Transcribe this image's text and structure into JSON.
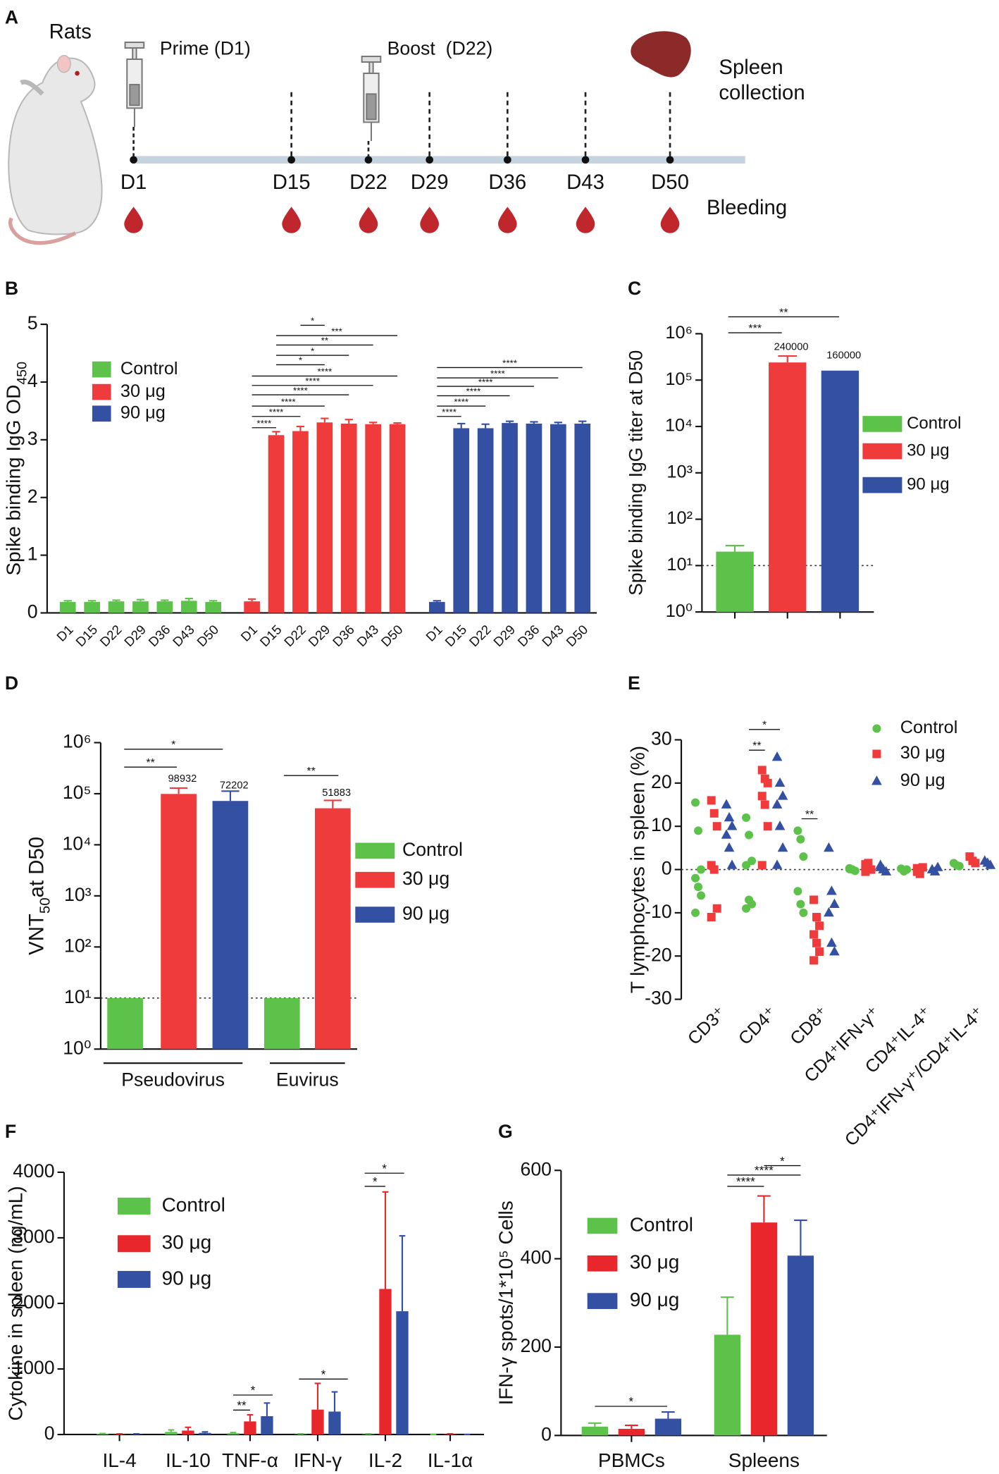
{
  "timeline": {
    "label": "A",
    "subject": "Rats",
    "prime": "Prime (D1)",
    "boost": "Boost  (D22)",
    "spleen": [
      "Spleen",
      "collection"
    ],
    "days": [
      "D1",
      "D15",
      "D22",
      "D29",
      "D36",
      "D43",
      "D50"
    ],
    "bleeding": "Bleeding"
  },
  "chart_data": [
    {
      "label": "B",
      "type": "bar",
      "ylabel": [
        "Spike binding IgG OD",
        "450"
      ],
      "categories": [
        "D1",
        "D15",
        "D22",
        "D29",
        "D36",
        "D43",
        "D50"
      ],
      "ylim": [
        0,
        5
      ],
      "yticks": [
        0,
        1,
        2,
        3,
        4,
        5
      ],
      "series": [
        {
          "name": "Control",
          "color": "#5cc24a",
          "values": [
            0.19,
            0.19,
            0.2,
            0.2,
            0.2,
            0.21,
            0.19
          ],
          "errors": [
            0.02,
            0.02,
            0.02,
            0.03,
            0.02,
            0.04,
            0.02
          ]
        },
        {
          "name": "30 μg",
          "color": "#ef3b3b",
          "values": [
            0.2,
            3.08,
            3.15,
            3.3,
            3.28,
            3.27,
            3.27
          ],
          "errors": [
            0.04,
            0.06,
            0.08,
            0.07,
            0.07,
            0.03,
            0.02
          ]
        },
        {
          "name": "90 μg",
          "color": "#3450a3",
          "values": [
            0.19,
            3.2,
            3.2,
            3.29,
            3.28,
            3.27,
            3.28
          ],
          "errors": [
            0.02,
            0.08,
            0.07,
            0.03,
            0.03,
            0.03,
            0.04
          ]
        }
      ],
      "brackets": [
        "****",
        "****",
        "****",
        "****",
        "****",
        "****",
        "*",
        "*",
        "**",
        "***",
        "*",
        "****",
        "****",
        "****",
        "****",
        "****",
        "****"
      ]
    },
    {
      "label": "C",
      "type": "bar",
      "log": true,
      "ylabel": "Spike binding IgG titer at D50",
      "ylim": [
        1,
        1000000
      ],
      "yticks": [
        {
          "value": 1,
          "label": "10⁰"
        },
        {
          "value": 10,
          "label": "10¹"
        },
        {
          "value": 100,
          "label": "10²"
        },
        {
          "value": 1000,
          "label": "10³"
        },
        {
          "value": 10000,
          "label": "10⁴"
        },
        {
          "value": 100000,
          "label": "10⁵"
        },
        {
          "value": 1000000,
          "label": "10⁶"
        }
      ],
      "refline": 10,
      "show_values": [
        false,
        true,
        true
      ],
      "series": [
        {
          "name": "Control",
          "color": "#5cc24a",
          "values": [
            20
          ],
          "errors": [
            7
          ]
        },
        {
          "name": "30 μg",
          "color": "#ef3b3b",
          "values": [
            240000
          ],
          "errors": [
            90000
          ]
        },
        {
          "name": "90 μg",
          "color": "#3450a3",
          "values": [
            160000
          ],
          "errors": [
            null
          ]
        }
      ],
      "brackets": [
        "***",
        "**"
      ]
    },
    {
      "label": "D",
      "type": "bar",
      "log": true,
      "ylabel": [
        "VNT",
        "50",
        "at D50"
      ],
      "categories": [
        "Pseudovirus",
        "Euvirus"
      ],
      "ylim": [
        1,
        1000000
      ],
      "yticks": [
        {
          "value": 1,
          "label": "10⁰"
        },
        {
          "value": 10,
          "label": "10¹"
        },
        {
          "value": 100,
          "label": "10²"
        },
        {
          "value": 1000,
          "label": "10³"
        },
        {
          "value": 10000,
          "label": "10⁴"
        },
        {
          "value": 100000,
          "label": "10⁵"
        },
        {
          "value": 1000000,
          "label": "10⁶"
        }
      ],
      "refline": 10,
      "show_values": [
        false,
        true,
        true
      ],
      "series": [
        {
          "name": "Control",
          "color": "#5cc24a",
          "values": [
            10,
            10
          ],
          "errors": [
            null,
            null
          ]
        },
        {
          "name": "30 μg",
          "color": "#ef3b3b",
          "values": [
            98932,
            51883
          ],
          "errors": [
            30000,
            22000
          ]
        },
        {
          "name": "90 μg",
          "color": "#3450a3",
          "values": [
            72202,
            null
          ],
          "errors": [
            40000,
            null
          ]
        }
      ],
      "brackets": [
        "**",
        "*",
        "**"
      ]
    },
    {
      "label": "E",
      "type": "scatter",
      "ylabel": "T lymphocytes in spleen (%)",
      "categories": [
        "CD3⁺",
        "CD4⁺",
        "CD8⁺",
        "CD4⁺IFN-γ⁺",
        "CD4⁺IL-4⁺",
        "CD4⁺IFN-γ⁺/CD4⁺IL-4⁺"
      ],
      "ylim": [
        -30,
        30
      ],
      "yticks": [
        30,
        20,
        10,
        0,
        -10,
        -20,
        -30
      ],
      "refline": 0,
      "series": [
        {
          "name": "Control",
          "color": "#5cc24a",
          "marker": "circle",
          "values": [
            [
              15.5,
              9,
              0,
              -2,
              -4,
              -6,
              -10
            ],
            [
              12,
              8,
              2,
              1,
              -7,
              -8,
              -9
            ],
            [
              9,
              7,
              3,
              -5,
              -8,
              -10
            ],
            [
              0.3,
              0,
              -0.3,
              0.1
            ],
            [
              0.2,
              -0.4,
              0
            ],
            [
              1.5,
              1,
              0.8
            ]
          ]
        },
        {
          "name": "30 μg",
          "color": "#ef3b3b",
          "marker": "square",
          "values": [
            [
              16,
              13,
              10,
              1,
              0,
              -9,
              -11
            ],
            [
              23,
              21,
              20,
              17,
              15,
              10,
              1
            ],
            [
              -7,
              -11,
              -13,
              -15,
              -17,
              -19,
              -21
            ],
            [
              1.2,
              0.5,
              0,
              -0.5,
              1.5
            ],
            [
              0.3,
              -1,
              0.5,
              -0.5
            ],
            [
              3,
              2,
              1.5
            ]
          ]
        },
        {
          "name": "90 μg",
          "color": "#3450a3",
          "marker": "triangle",
          "values": [
            [
              15,
              12,
              10,
              8,
              5,
              1
            ],
            [
              26,
              20,
              17,
              15,
              10,
              5,
              1
            ],
            [
              5,
              -5,
              -8,
              -10,
              -17,
              -19
            ],
            [
              1,
              0,
              -0.5,
              0.5
            ],
            [
              0,
              -0.5,
              0.5
            ],
            [
              2,
              1.5,
              1
            ]
          ]
        }
      ],
      "brackets": [
        "*",
        "**",
        "**"
      ]
    },
    {
      "label": "F",
      "type": "bar",
      "ylabel": "Cytokine in spleen (ng/mL)",
      "categories": [
        "IL-4",
        "IL-10",
        "TNF-α",
        "IFN-γ",
        "IL-2",
        "IL-1α"
      ],
      "ylim": [
        0,
        4000
      ],
      "yticks": [
        0,
        1000,
        2000,
        3000,
        4000
      ],
      "series": [
        {
          "name": "Control",
          "color": "#5cc24a",
          "values": [
            10,
            40,
            20,
            5,
            5,
            0
          ],
          "errors": [
            5,
            30,
            10,
            5,
            5,
            0
          ]
        },
        {
          "name": "30 μg",
          "color": "#e8262c",
          "values": [
            5,
            60,
            200,
            380,
            2220,
            5
          ],
          "errors": [
            5,
            50,
            100,
            400,
            1480,
            5
          ]
        },
        {
          "name": "90 μg",
          "color": "#3450a3",
          "values": [
            5,
            25,
            280,
            350,
            1880,
            0
          ],
          "errors": [
            5,
            15,
            200,
            300,
            1150,
            0
          ]
        }
      ],
      "brackets": [
        "**",
        "*",
        "*",
        "*",
        "*"
      ]
    },
    {
      "label": "G",
      "type": "bar",
      "ylabel": "IFN-γ spots/1*10⁵ Cells",
      "categories": [
        "PBMCs",
        "Spleens"
      ],
      "ylim": [
        0,
        600
      ],
      "yticks": [
        0,
        200,
        400,
        600
      ],
      "series": [
        {
          "name": "Control",
          "color": "#5cc24a",
          "values": [
            20,
            228
          ],
          "errors": [
            8,
            85
          ]
        },
        {
          "name": "30 μg",
          "color": "#e8262c",
          "values": [
            15,
            482
          ],
          "errors": [
            8,
            60
          ]
        },
        {
          "name": "90 μg",
          "color": "#3450a3",
          "values": [
            38,
            407
          ],
          "errors": [
            15,
            80
          ]
        }
      ],
      "brackets": [
        "*",
        "****",
        "****",
        "*"
      ]
    }
  ]
}
